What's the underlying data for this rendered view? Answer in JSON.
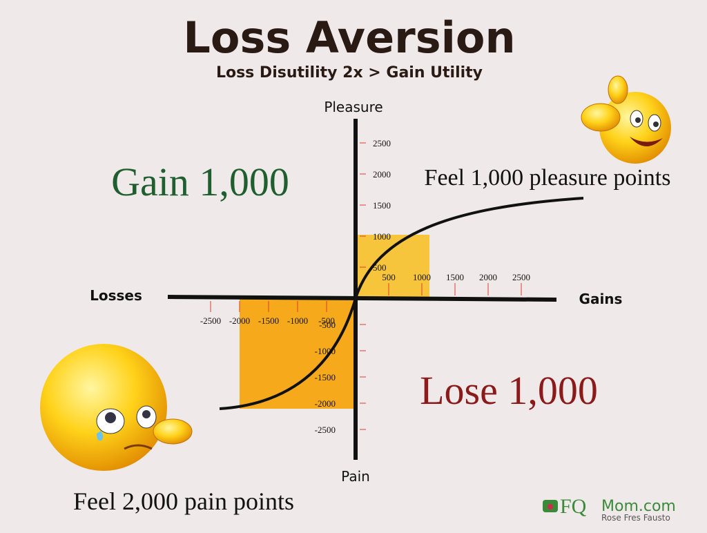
{
  "header": {
    "title": "Loss Aversion",
    "subtitle": "Loss Disutility 2x > Gain Utility"
  },
  "y_axis": {
    "label_top": "Pleasure",
    "label_bottom": "Pain",
    "ticks_positive": [
      500,
      1000,
      1500,
      2000,
      2500
    ],
    "ticks_negative": [
      -500,
      -1000,
      -1500,
      -2000,
      -2500
    ]
  },
  "x_axis": {
    "label_left": "Losses",
    "label_right": "Gains",
    "ticks_positive": [
      500,
      1000,
      1500,
      2000,
      2500
    ],
    "ticks_negative": [
      -2500,
      -2000,
      -1500,
      -1000,
      -500
    ]
  },
  "annotations": {
    "gain": "Gain 1,000",
    "gain_feel": "Feel 1,000 pleasure points",
    "loss": "Lose 1,000",
    "loss_feel": "Feel 2,000 pain points"
  },
  "logo": {
    "brand_a": "FQ",
    "brand_b": "Mom.com",
    "tagline": "Rose Fres Fausto"
  }
}
